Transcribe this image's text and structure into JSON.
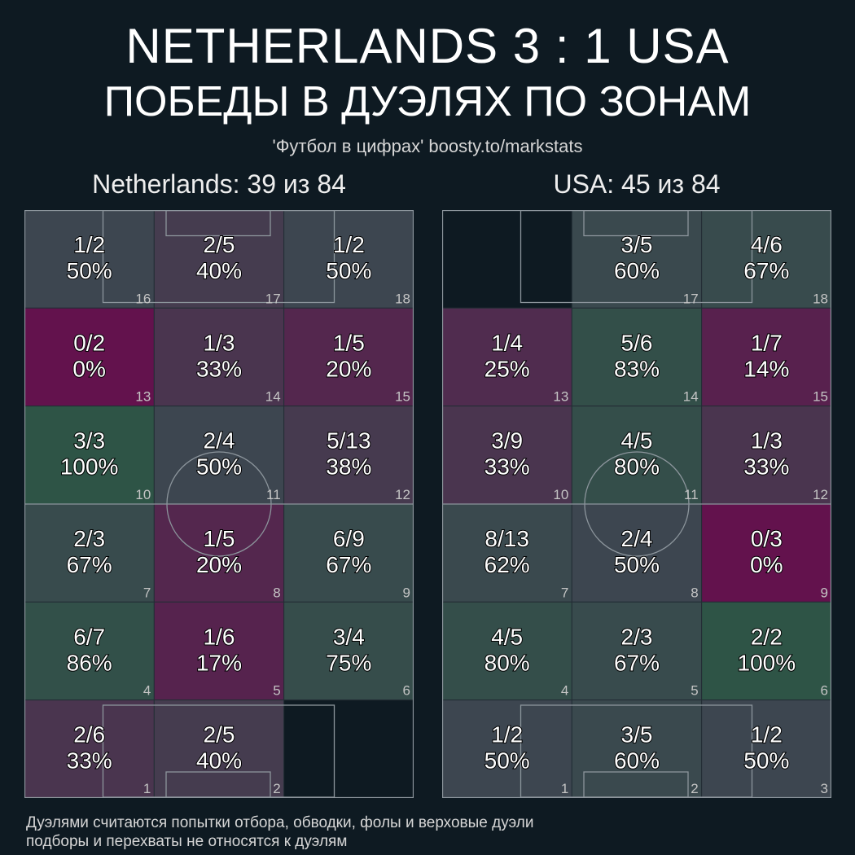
{
  "header": {
    "title": "NETHERLANDS 3 : 1 USA",
    "subtitle": "ПОБЕДЫ В ДУЭЛЯХ ПО ЗОНАМ",
    "credit": "'Футбол в цифрах' boosty.to/markstats"
  },
  "colors": {
    "background": "#0e1a22",
    "win_high": "#2e5446",
    "mid": "#3d4650",
    "win_low": "#63124d",
    "pitch_lines": "#8c959c"
  },
  "chart_data": [
    {
      "type": "heatmap",
      "team": "Netherlands",
      "title": "Netherlands: 39 из 84",
      "won": 39,
      "total": 84,
      "zones": [
        {
          "zone": 16,
          "label": "16",
          "won": 1,
          "total": 2,
          "frac": "1/2",
          "pct": "50%"
        },
        {
          "zone": 17,
          "label": "17",
          "won": 2,
          "total": 5,
          "frac": "2/5",
          "pct": "40%"
        },
        {
          "zone": 18,
          "label": "18",
          "won": 1,
          "total": 2,
          "frac": "1/2",
          "pct": "50%"
        },
        {
          "zone": 13,
          "label": "13",
          "won": 0,
          "total": 2,
          "frac": "0/2",
          "pct": "0%"
        },
        {
          "zone": 14,
          "label": "14",
          "won": 1,
          "total": 3,
          "frac": "1/3",
          "pct": "33%"
        },
        {
          "zone": 15,
          "label": "15",
          "won": 1,
          "total": 5,
          "frac": "1/5",
          "pct": "20%"
        },
        {
          "zone": 10,
          "label": "10",
          "won": 3,
          "total": 3,
          "frac": "3/3",
          "pct": "100%"
        },
        {
          "zone": 11,
          "label": "11",
          "won": 2,
          "total": 4,
          "frac": "2/4",
          "pct": "50%"
        },
        {
          "zone": 12,
          "label": "12",
          "won": 5,
          "total": 13,
          "frac": "5/13",
          "pct": "38%"
        },
        {
          "zone": 7,
          "label": "7",
          "won": 2,
          "total": 3,
          "frac": "2/3",
          "pct": "67%"
        },
        {
          "zone": 8,
          "label": "8",
          "won": 1,
          "total": 5,
          "frac": "1/5",
          "pct": "20%"
        },
        {
          "zone": 9,
          "label": "9",
          "won": 6,
          "total": 9,
          "frac": "6/9",
          "pct": "67%"
        },
        {
          "zone": 4,
          "label": "4",
          "won": 6,
          "total": 7,
          "frac": "6/7",
          "pct": "86%"
        },
        {
          "zone": 5,
          "label": "5",
          "won": 1,
          "total": 6,
          "frac": "1/6",
          "pct": "17%"
        },
        {
          "zone": 6,
          "label": "6",
          "won": 3,
          "total": 4,
          "frac": "3/4",
          "pct": "75%"
        },
        {
          "zone": 1,
          "label": "1",
          "won": 2,
          "total": 6,
          "frac": "2/6",
          "pct": "33%"
        },
        {
          "zone": 2,
          "label": "2",
          "won": 2,
          "total": 5,
          "frac": "2/5",
          "pct": "40%"
        },
        {
          "zone": 3,
          "label": "",
          "won": null,
          "total": null,
          "frac": "",
          "pct": ""
        }
      ]
    },
    {
      "type": "heatmap",
      "team": "USA",
      "title": "USA: 45 из 84",
      "won": 45,
      "total": 84,
      "zones": [
        {
          "zone": 16,
          "label": "",
          "won": null,
          "total": null,
          "frac": "",
          "pct": ""
        },
        {
          "zone": 17,
          "label": "17",
          "won": 3,
          "total": 5,
          "frac": "3/5",
          "pct": "60%"
        },
        {
          "zone": 18,
          "label": "18",
          "won": 4,
          "total": 6,
          "frac": "4/6",
          "pct": "67%"
        },
        {
          "zone": 13,
          "label": "13",
          "won": 1,
          "total": 4,
          "frac": "1/4",
          "pct": "25%"
        },
        {
          "zone": 14,
          "label": "14",
          "won": 5,
          "total": 6,
          "frac": "5/6",
          "pct": "83%"
        },
        {
          "zone": 15,
          "label": "15",
          "won": 1,
          "total": 7,
          "frac": "1/7",
          "pct": "14%"
        },
        {
          "zone": 10,
          "label": "10",
          "won": 3,
          "total": 9,
          "frac": "3/9",
          "pct": "33%"
        },
        {
          "zone": 11,
          "label": "11",
          "won": 4,
          "total": 5,
          "frac": "4/5",
          "pct": "80%"
        },
        {
          "zone": 12,
          "label": "12",
          "won": 1,
          "total": 3,
          "frac": "1/3",
          "pct": "33%"
        },
        {
          "zone": 7,
          "label": "7",
          "won": 8,
          "total": 13,
          "frac": "8/13",
          "pct": "62%"
        },
        {
          "zone": 8,
          "label": "8",
          "won": 2,
          "total": 4,
          "frac": "2/4",
          "pct": "50%"
        },
        {
          "zone": 9,
          "label": "9",
          "won": 0,
          "total": 3,
          "frac": "0/3",
          "pct": "0%"
        },
        {
          "zone": 4,
          "label": "4",
          "won": 4,
          "total": 5,
          "frac": "4/5",
          "pct": "80%"
        },
        {
          "zone": 5,
          "label": "5",
          "won": 2,
          "total": 3,
          "frac": "2/3",
          "pct": "67%"
        },
        {
          "zone": 6,
          "label": "6",
          "won": 2,
          "total": 2,
          "frac": "2/2",
          "pct": "100%"
        },
        {
          "zone": 1,
          "label": "1",
          "won": 1,
          "total": 2,
          "frac": "1/2",
          "pct": "50%"
        },
        {
          "zone": 2,
          "label": "2",
          "won": 3,
          "total": 5,
          "frac": "3/5",
          "pct": "60%"
        },
        {
          "zone": 3,
          "label": "3",
          "won": 1,
          "total": 2,
          "frac": "1/2",
          "pct": "50%"
        }
      ]
    }
  ],
  "footnote": {
    "line1": "Дуэлями считаются попытки отбора, обводки, фолы и верховые дуэли",
    "line2": "подборы и перехваты не относятся к дуэлям"
  }
}
